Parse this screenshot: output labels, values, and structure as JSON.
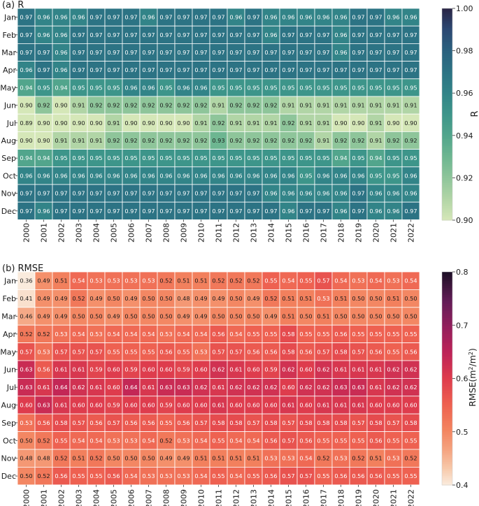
{
  "chart_data": [
    {
      "type": "heatmap",
      "title": "(a) R",
      "colorbar_label": "R",
      "vmin": 0.9,
      "vmax": 1.0,
      "colorbar_ticks": [
        "0.90",
        "0.92",
        "0.94",
        "0.96",
        "0.98",
        "1.00"
      ],
      "colormap": "crest",
      "x": [
        "2000",
        "2001",
        "2002",
        "2003",
        "2004",
        "2005",
        "2006",
        "2007",
        "2008",
        "2009",
        "2010",
        "2011",
        "2012",
        "2013",
        "2014",
        "2015",
        "2016",
        "2017",
        "2018",
        "2019",
        "2020",
        "2021",
        "2022"
      ],
      "y": [
        "Jan",
        "Feb",
        "Mar",
        "Apr",
        "May",
        "Jun",
        "Jul",
        "Aug",
        "Sep",
        "Oct",
        "Nov",
        "Dec"
      ],
      "values": [
        [
          "0.97",
          "0.96",
          "0.96",
          "0.96",
          "0.97",
          "0.97",
          "0.97",
          "0.96",
          "0.97",
          "0.97",
          "0.97",
          "0.97",
          "0.96",
          "0.97",
          "0.96",
          "0.96",
          "0.96",
          "0.96",
          "0.96",
          "0.97",
          "0.97",
          "0.96",
          "0.96"
        ],
        [
          "0.97",
          "0.96",
          "0.96",
          "0.97",
          "0.97",
          "0.97",
          "0.97",
          "0.97",
          "0.97",
          "0.97",
          "0.97",
          "0.97",
          "0.97",
          "0.97",
          "0.96",
          "0.97",
          "0.97",
          "0.97",
          "0.96",
          "0.97",
          "0.97",
          "0.97",
          "0.97"
        ],
        [
          "0.97",
          "0.97",
          "0.96",
          "0.97",
          "0.97",
          "0.97",
          "0.97",
          "0.97",
          "0.97",
          "0.97",
          "0.97",
          "0.97",
          "0.97",
          "0.97",
          "0.97",
          "0.97",
          "0.97",
          "0.97",
          "0.96",
          "0.97",
          "0.97",
          "0.97",
          "0.97"
        ],
        [
          "0.96",
          "0.97",
          "0.96",
          "0.97",
          "0.97",
          "0.97",
          "0.97",
          "0.97",
          "0.97",
          "0.97",
          "0.97",
          "0.97",
          "0.97",
          "0.97",
          "0.97",
          "0.97",
          "0.97",
          "0.97",
          "0.97",
          "0.97",
          "0.97",
          "0.97",
          "0.97"
        ],
        [
          "0.94",
          "0.95",
          "0.94",
          "0.95",
          "0.95",
          "0.95",
          "0.96",
          "0.96",
          "0.95",
          "0.96",
          "0.96",
          "0.95",
          "0.95",
          "0.95",
          "0.95",
          "0.95",
          "0.95",
          "0.95",
          "0.95",
          "0.95",
          "0.95",
          "0.95",
          "0.95"
        ],
        [
          "0.90",
          "0.92",
          "0.90",
          "0.91",
          "0.92",
          "0.92",
          "0.92",
          "0.92",
          "0.92",
          "0.92",
          "0.92",
          "0.91",
          "0.92",
          "0.92",
          "0.92",
          "0.91",
          "0.91",
          "0.91",
          "0.91",
          "0.91",
          "0.91",
          "0.91",
          "0.91"
        ],
        [
          "0.89",
          "0.90",
          "0.90",
          "0.90",
          "0.90",
          "0.91",
          "0.90",
          "0.90",
          "0.90",
          "0.90",
          "0.91",
          "0.92",
          "0.91",
          "0.91",
          "0.91",
          "0.92",
          "0.91",
          "0.91",
          "0.90",
          "0.90",
          "0.91",
          "0.90",
          "0.90"
        ],
        [
          "0.90",
          "0.90",
          "0.91",
          "0.91",
          "0.91",
          "0.92",
          "0.92",
          "0.92",
          "0.92",
          "0.92",
          "0.92",
          "0.93",
          "0.92",
          "0.92",
          "0.92",
          "0.92",
          "0.92",
          "0.91",
          "0.92",
          "0.92",
          "0.91",
          "0.92",
          "0.92"
        ],
        [
          "0.94",
          "0.94",
          "0.95",
          "0.95",
          "0.95",
          "0.95",
          "0.95",
          "0.95",
          "0.95",
          "0.95",
          "0.95",
          "0.95",
          "0.95",
          "0.95",
          "0.95",
          "0.95",
          "0.95",
          "0.95",
          "0.94",
          "0.95",
          "0.94",
          "0.95",
          "0.95"
        ],
        [
          "0.96",
          "0.96",
          "0.96",
          "0.96",
          "0.96",
          "0.96",
          "0.96",
          "0.96",
          "0.96",
          "0.96",
          "0.96",
          "0.96",
          "0.96",
          "0.96",
          "0.96",
          "0.96",
          "0.95",
          "0.96",
          "0.96",
          "0.96",
          "0.95",
          "0.95",
          "0.96"
        ],
        [
          "0.97",
          "0.97",
          "0.97",
          "0.97",
          "0.97",
          "0.97",
          "0.97",
          "0.97",
          "0.97",
          "0.97",
          "0.97",
          "0.97",
          "0.97",
          "0.97",
          "0.96",
          "0.96",
          "0.96",
          "0.96",
          "0.96",
          "0.97",
          "0.96",
          "0.96",
          "0.96"
        ],
        [
          "0.97",
          "0.96",
          "0.97",
          "0.97",
          "0.97",
          "0.97",
          "0.97",
          "0.97",
          "0.97",
          "0.97",
          "0.97",
          "0.97",
          "0.97",
          "0.97",
          "0.97",
          "0.96",
          "0.97",
          "0.97",
          "0.96",
          "0.97",
          "0.96",
          "0.96",
          "0.97"
        ]
      ]
    },
    {
      "type": "heatmap",
      "title": "(b) RMSE",
      "colorbar_label": "RMSE(m",
      "colorbar_unit_sup": "2",
      "colorbar_unit_mid": "/m",
      "colorbar_unit_end": ")",
      "vmin": 0.4,
      "vmax": 0.8,
      "colorbar_ticks": [
        "0.4",
        "0.5",
        "0.6",
        "0.7",
        "0.8"
      ],
      "colormap": "rocket_r",
      "x": [
        "2000",
        "2001",
        "2002",
        "2003",
        "2004",
        "2005",
        "2006",
        "2007",
        "2008",
        "2009",
        "2010",
        "2011",
        "2012",
        "2013",
        "2014",
        "2015",
        "2016",
        "2017",
        "2018",
        "2019",
        "2020",
        "2021",
        "2022"
      ],
      "y": [
        "Jan",
        "Feb",
        "Mar",
        "Apr",
        "May",
        "Jun",
        "Jul",
        "Aug",
        "Sep",
        "Oct",
        "Nov",
        "Dec"
      ],
      "values": [
        [
          "0.36",
          "0.49",
          "0.51",
          "0.54",
          "0.53",
          "0.53",
          "0.53",
          "0.53",
          "0.52",
          "0.51",
          "0.51",
          "0.52",
          "0.52",
          "0.52",
          "0.55",
          "0.54",
          "0.55",
          "0.57",
          "0.54",
          "0.53",
          "0.54",
          "0.53",
          "0.54"
        ],
        [
          "0.41",
          "0.49",
          "0.49",
          "0.52",
          "0.49",
          "0.50",
          "0.49",
          "0.50",
          "0.50",
          "0.48",
          "0.49",
          "0.49",
          "0.50",
          "0.49",
          "0.52",
          "0.51",
          "0.51",
          "0.53",
          "0.51",
          "0.50",
          "0.50",
          "0.51",
          "0.50"
        ],
        [
          "0.46",
          "0.49",
          "0.49",
          "0.50",
          "0.50",
          "0.49",
          "0.50",
          "0.50",
          "0.50",
          "0.49",
          "0.49",
          "0.50",
          "0.50",
          "0.50",
          "0.49",
          "0.51",
          "0.50",
          "0.51",
          "0.50",
          "0.50",
          "0.50",
          "0.50",
          "0.50"
        ],
        [
          "0.52",
          "0.52",
          "0.53",
          "0.54",
          "0.53",
          "0.54",
          "0.54",
          "0.54",
          "0.53",
          "0.54",
          "0.54",
          "0.56",
          "0.54",
          "0.55",
          "0.55",
          "0.58",
          "0.55",
          "0.55",
          "0.56",
          "0.55",
          "0.55",
          "0.55",
          "0.55"
        ],
        [
          "0.57",
          "0.53",
          "0.57",
          "0.57",
          "0.57",
          "0.55",
          "0.55",
          "0.55",
          "0.56",
          "0.55",
          "0.53",
          "0.57",
          "0.57",
          "0.56",
          "0.56",
          "0.58",
          "0.56",
          "0.57",
          "0.58",
          "0.57",
          "0.56",
          "0.55",
          "0.56"
        ],
        [
          "0.63",
          "0.56",
          "0.61",
          "0.61",
          "0.59",
          "0.60",
          "0.59",
          "0.60",
          "0.60",
          "0.59",
          "0.60",
          "0.62",
          "0.61",
          "0.60",
          "0.59",
          "0.62",
          "0.60",
          "0.62",
          "0.61",
          "0.61",
          "0.61",
          "0.62",
          "0.62"
        ],
        [
          "0.63",
          "0.61",
          "0.64",
          "0.62",
          "0.61",
          "0.60",
          "0.64",
          "0.61",
          "0.63",
          "0.63",
          "0.62",
          "0.61",
          "0.62",
          "0.62",
          "0.62",
          "0.60",
          "0.62",
          "0.62",
          "0.63",
          "0.63",
          "0.61",
          "0.62",
          "0.62"
        ],
        [
          "0.60",
          "0.63",
          "0.61",
          "0.60",
          "0.60",
          "0.59",
          "0.60",
          "0.60",
          "0.59",
          "0.60",
          "0.60",
          "0.61",
          "0.60",
          "0.60",
          "0.60",
          "0.61",
          "0.60",
          "0.61",
          "0.61",
          "0.61",
          "0.60",
          "0.60",
          "0.60"
        ],
        [
          "0.53",
          "0.56",
          "0.58",
          "0.57",
          "0.56",
          "0.57",
          "0.56",
          "0.56",
          "0.55",
          "0.56",
          "0.57",
          "0.58",
          "0.58",
          "0.57",
          "0.58",
          "0.57",
          "0.58",
          "0.58",
          "0.58",
          "0.57",
          "0.58",
          "0.57",
          "0.58"
        ],
        [
          "0.50",
          "0.52",
          "0.55",
          "0.54",
          "0.54",
          "0.53",
          "0.53",
          "0.54",
          "0.52",
          "0.53",
          "0.54",
          "0.55",
          "0.54",
          "0.54",
          "0.56",
          "0.57",
          "0.56",
          "0.55",
          "0.55",
          "0.55",
          "0.56",
          "0.55",
          "0.55"
        ],
        [
          "0.48",
          "0.48",
          "0.52",
          "0.51",
          "0.52",
          "0.50",
          "0.50",
          "0.50",
          "0.49",
          "0.49",
          "0.51",
          "0.51",
          "0.51",
          "0.51",
          "0.53",
          "0.53",
          "0.54",
          "0.52",
          "0.53",
          "0.52",
          "0.51",
          "0.53",
          "0.52"
        ],
        [
          "0.50",
          "0.52",
          "0.56",
          "0.55",
          "0.55",
          "0.56",
          "0.54",
          "0.53",
          "0.53",
          "0.53",
          "0.54",
          "0.55",
          "0.54",
          "0.55",
          "0.56",
          "0.57",
          "0.57",
          "0.55",
          "0.56",
          "0.56",
          "0.56",
          "0.55",
          "0.55"
        ]
      ]
    }
  ]
}
